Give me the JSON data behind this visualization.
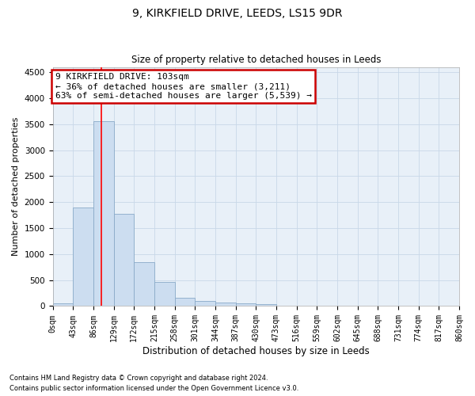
{
  "title1": "9, KIRKFIELD DRIVE, LEEDS, LS15 9DR",
  "title2": "Size of property relative to detached houses in Leeds",
  "xlabel": "Distribution of detached houses by size in Leeds",
  "ylabel": "Number of detached properties",
  "footnote1": "Contains HM Land Registry data © Crown copyright and database right 2024.",
  "footnote2": "Contains public sector information licensed under the Open Government Licence v3.0.",
  "bin_edges": [
    0,
    43,
    86,
    129,
    172,
    215,
    258,
    301,
    344,
    387,
    430,
    473,
    516,
    559,
    602,
    645,
    688,
    731,
    774,
    817,
    860
  ],
  "bar_heights": [
    50,
    1900,
    3550,
    1780,
    840,
    460,
    160,
    100,
    75,
    55,
    40,
    10,
    5,
    3,
    2,
    1,
    1,
    0,
    0,
    0
  ],
  "bar_color": "#ccddf0",
  "bar_edge_color": "#8aaac8",
  "red_line_x": 103,
  "ylim": [
    0,
    4600
  ],
  "yticks": [
    0,
    500,
    1000,
    1500,
    2000,
    2500,
    3000,
    3500,
    4000,
    4500
  ],
  "annotation_line1": "9 KIRKFIELD DRIVE: 103sqm",
  "annotation_line2": "← 36% of detached houses are smaller (3,211)",
  "annotation_line3": "63% of semi-detached houses are larger (5,539) →",
  "annotation_box_color": "#ffffff",
  "annotation_box_edge": "#cc0000",
  "grid_color": "#c8d8e8",
  "bg_color": "#e8f0f8",
  "xlim": [
    0,
    860
  ]
}
